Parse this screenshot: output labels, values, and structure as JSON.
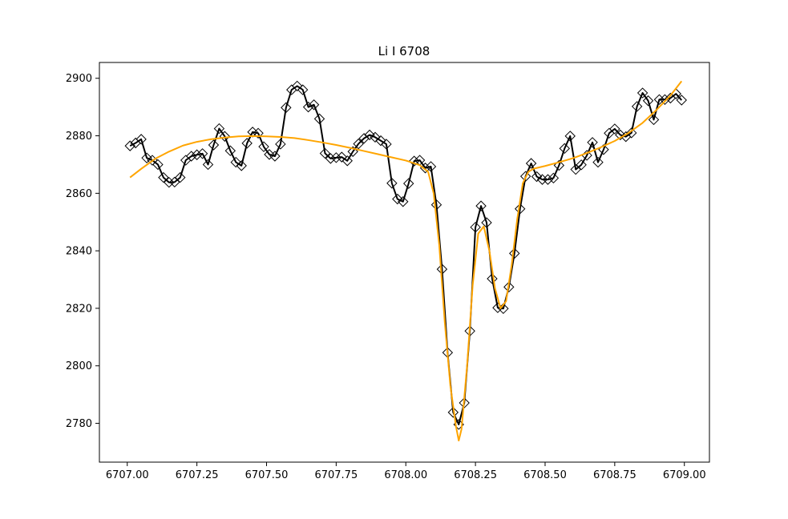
{
  "chart_data": {
    "type": "line",
    "title": "Li I 6708",
    "xlabel": "",
    "ylabel": "",
    "xlim": [
      6706.9,
      6709.09
    ],
    "ylim": [
      2766.5,
      2905.5
    ],
    "xticks": [
      6707.0,
      6707.25,
      6707.5,
      6707.75,
      6708.0,
      6708.25,
      6708.5,
      6708.75,
      6709.0
    ],
    "xtick_labels": [
      "6707.00",
      "6707.25",
      "6707.50",
      "6707.75",
      "6708.00",
      "6708.25",
      "6708.50",
      "6708.75",
      "6709.00"
    ],
    "yticks": [
      2780,
      2800,
      2820,
      2840,
      2860,
      2880,
      2900
    ],
    "ytick_labels": [
      "2780",
      "2800",
      "2820",
      "2840",
      "2860",
      "2880",
      "2900"
    ],
    "grid": false,
    "legend": "none",
    "series": [
      {
        "style": "line-with-diamond-markers",
        "color": "#000000",
        "x": [
          6707.01,
          6707.03,
          6707.05,
          6707.07,
          6707.09,
          6707.11,
          6707.13,
          6707.15,
          6707.17,
          6707.19,
          6707.21,
          6707.23,
          6707.25,
          6707.27,
          6707.29,
          6707.31,
          6707.33,
          6707.35,
          6707.37,
          6707.39,
          6707.41,
          6707.43,
          6707.45,
          6707.47,
          6707.49,
          6707.51,
          6707.53,
          6707.55,
          6707.57,
          6707.59,
          6707.61,
          6707.63,
          6707.65,
          6707.67,
          6707.69,
          6707.71,
          6707.73,
          6707.75,
          6707.77,
          6707.79,
          6707.81,
          6707.83,
          6707.85,
          6707.87,
          6707.89,
          6707.91,
          6707.93,
          6707.95,
          6707.97,
          6707.99,
          6708.01,
          6708.03,
          6708.05,
          6708.07,
          6708.09,
          6708.11,
          6708.13,
          6708.15,
          6708.17,
          6708.19,
          6708.21,
          6708.23,
          6708.25,
          6708.27,
          6708.29,
          6708.31,
          6708.33,
          6708.35,
          6708.37,
          6708.39,
          6708.41,
          6708.43,
          6708.45,
          6708.47,
          6708.49,
          6708.51,
          6708.53,
          6708.55,
          6708.57,
          6708.59,
          6708.61,
          6708.63,
          6708.65,
          6708.67,
          6708.69,
          6708.71,
          6708.73,
          6708.75,
          6708.77,
          6708.79,
          6708.81,
          6708.83,
          6708.85,
          6708.87,
          6708.89,
          6708.91,
          6708.93,
          6708.95,
          6708.97,
          6708.99
        ],
        "y": [
          2876.5,
          2877.5,
          2878.8,
          2872.3,
          2871.5,
          2870.0,
          2865.5,
          2863.8,
          2863.9,
          2865.5,
          2871.5,
          2872.9,
          2873.4,
          2873.8,
          2870.0,
          2876.8,
          2882.5,
          2879.8,
          2874.8,
          2870.8,
          2869.6,
          2877.4,
          2881.3,
          2880.9,
          2876.2,
          2873.5,
          2872.9,
          2877.1,
          2889.8,
          2896.0,
          2897.3,
          2896.0,
          2890.0,
          2890.8,
          2885.9,
          2873.9,
          2872.1,
          2872.4,
          2872.6,
          2871.3,
          2874.5,
          2877.2,
          2879.1,
          2880.3,
          2879.5,
          2878.3,
          2877.1,
          2863.5,
          2858.0,
          2857.1,
          2863.4,
          2871.2,
          2871.5,
          2868.8,
          2869.3,
          2856.0,
          2833.6,
          2804.6,
          2783.8,
          2779.6,
          2787.1,
          2812.1,
          2848.2,
          2855.6,
          2849.8,
          2830.3,
          2820.2,
          2819.9,
          2827.4,
          2839.1,
          2854.6,
          2865.9,
          2870.4,
          2865.8,
          2864.8,
          2864.8,
          2865.3,
          2869.7,
          2875.6,
          2879.9,
          2868.3,
          2869.9,
          2873.2,
          2877.7,
          2870.8,
          2875.2,
          2880.9,
          2882.4,
          2880.3,
          2879.7,
          2881.0,
          2890.2,
          2894.9,
          2892.2,
          2885.6,
          2892.6,
          2892.6,
          2893.1,
          2894.6,
          2892.4
        ]
      },
      {
        "style": "line",
        "color": "#ffa500",
        "x": [
          6707.01,
          6707.05,
          6707.1,
          6707.15,
          6707.2,
          6707.25,
          6707.3,
          6707.35,
          6707.4,
          6707.45,
          6707.5,
          6707.55,
          6707.6,
          6707.65,
          6707.7,
          6707.75,
          6707.8,
          6707.85,
          6707.9,
          6707.95,
          6708.0,
          6708.05,
          6708.08,
          6708.1,
          6708.12,
          6708.14,
          6708.16,
          6708.18,
          6708.19,
          6708.2,
          6708.22,
          6708.24,
          6708.26,
          6708.28,
          6708.3,
          6708.32,
          6708.34,
          6708.36,
          6708.38,
          6708.4,
          6708.42,
          6708.44,
          6708.46,
          6708.5,
          6708.55,
          6708.6,
          6708.65,
          6708.7,
          6708.75,
          6708.8,
          6708.85,
          6708.9,
          6708.95,
          6708.99
        ],
        "y": [
          2865.5,
          2868.5,
          2872.0,
          2874.5,
          2876.6,
          2877.9,
          2878.8,
          2879.4,
          2879.8,
          2879.9,
          2879.8,
          2879.6,
          2879.2,
          2878.5,
          2877.7,
          2876.8,
          2875.8,
          2874.7,
          2873.6,
          2872.5,
          2871.4,
          2869.8,
          2867.5,
          2860.0,
          2842.0,
          2815.0,
          2793.0,
          2779.0,
          2774.0,
          2778.0,
          2800.0,
          2828.0,
          2846.0,
          2848.5,
          2840.0,
          2827.0,
          2820.0,
          2822.5,
          2835.0,
          2851.0,
          2863.5,
          2867.5,
          2868.6,
          2869.5,
          2870.8,
          2872.2,
          2874.0,
          2876.0,
          2878.2,
          2881.0,
          2884.5,
          2889.0,
          2894.0,
          2899.0
        ]
      }
    ]
  }
}
